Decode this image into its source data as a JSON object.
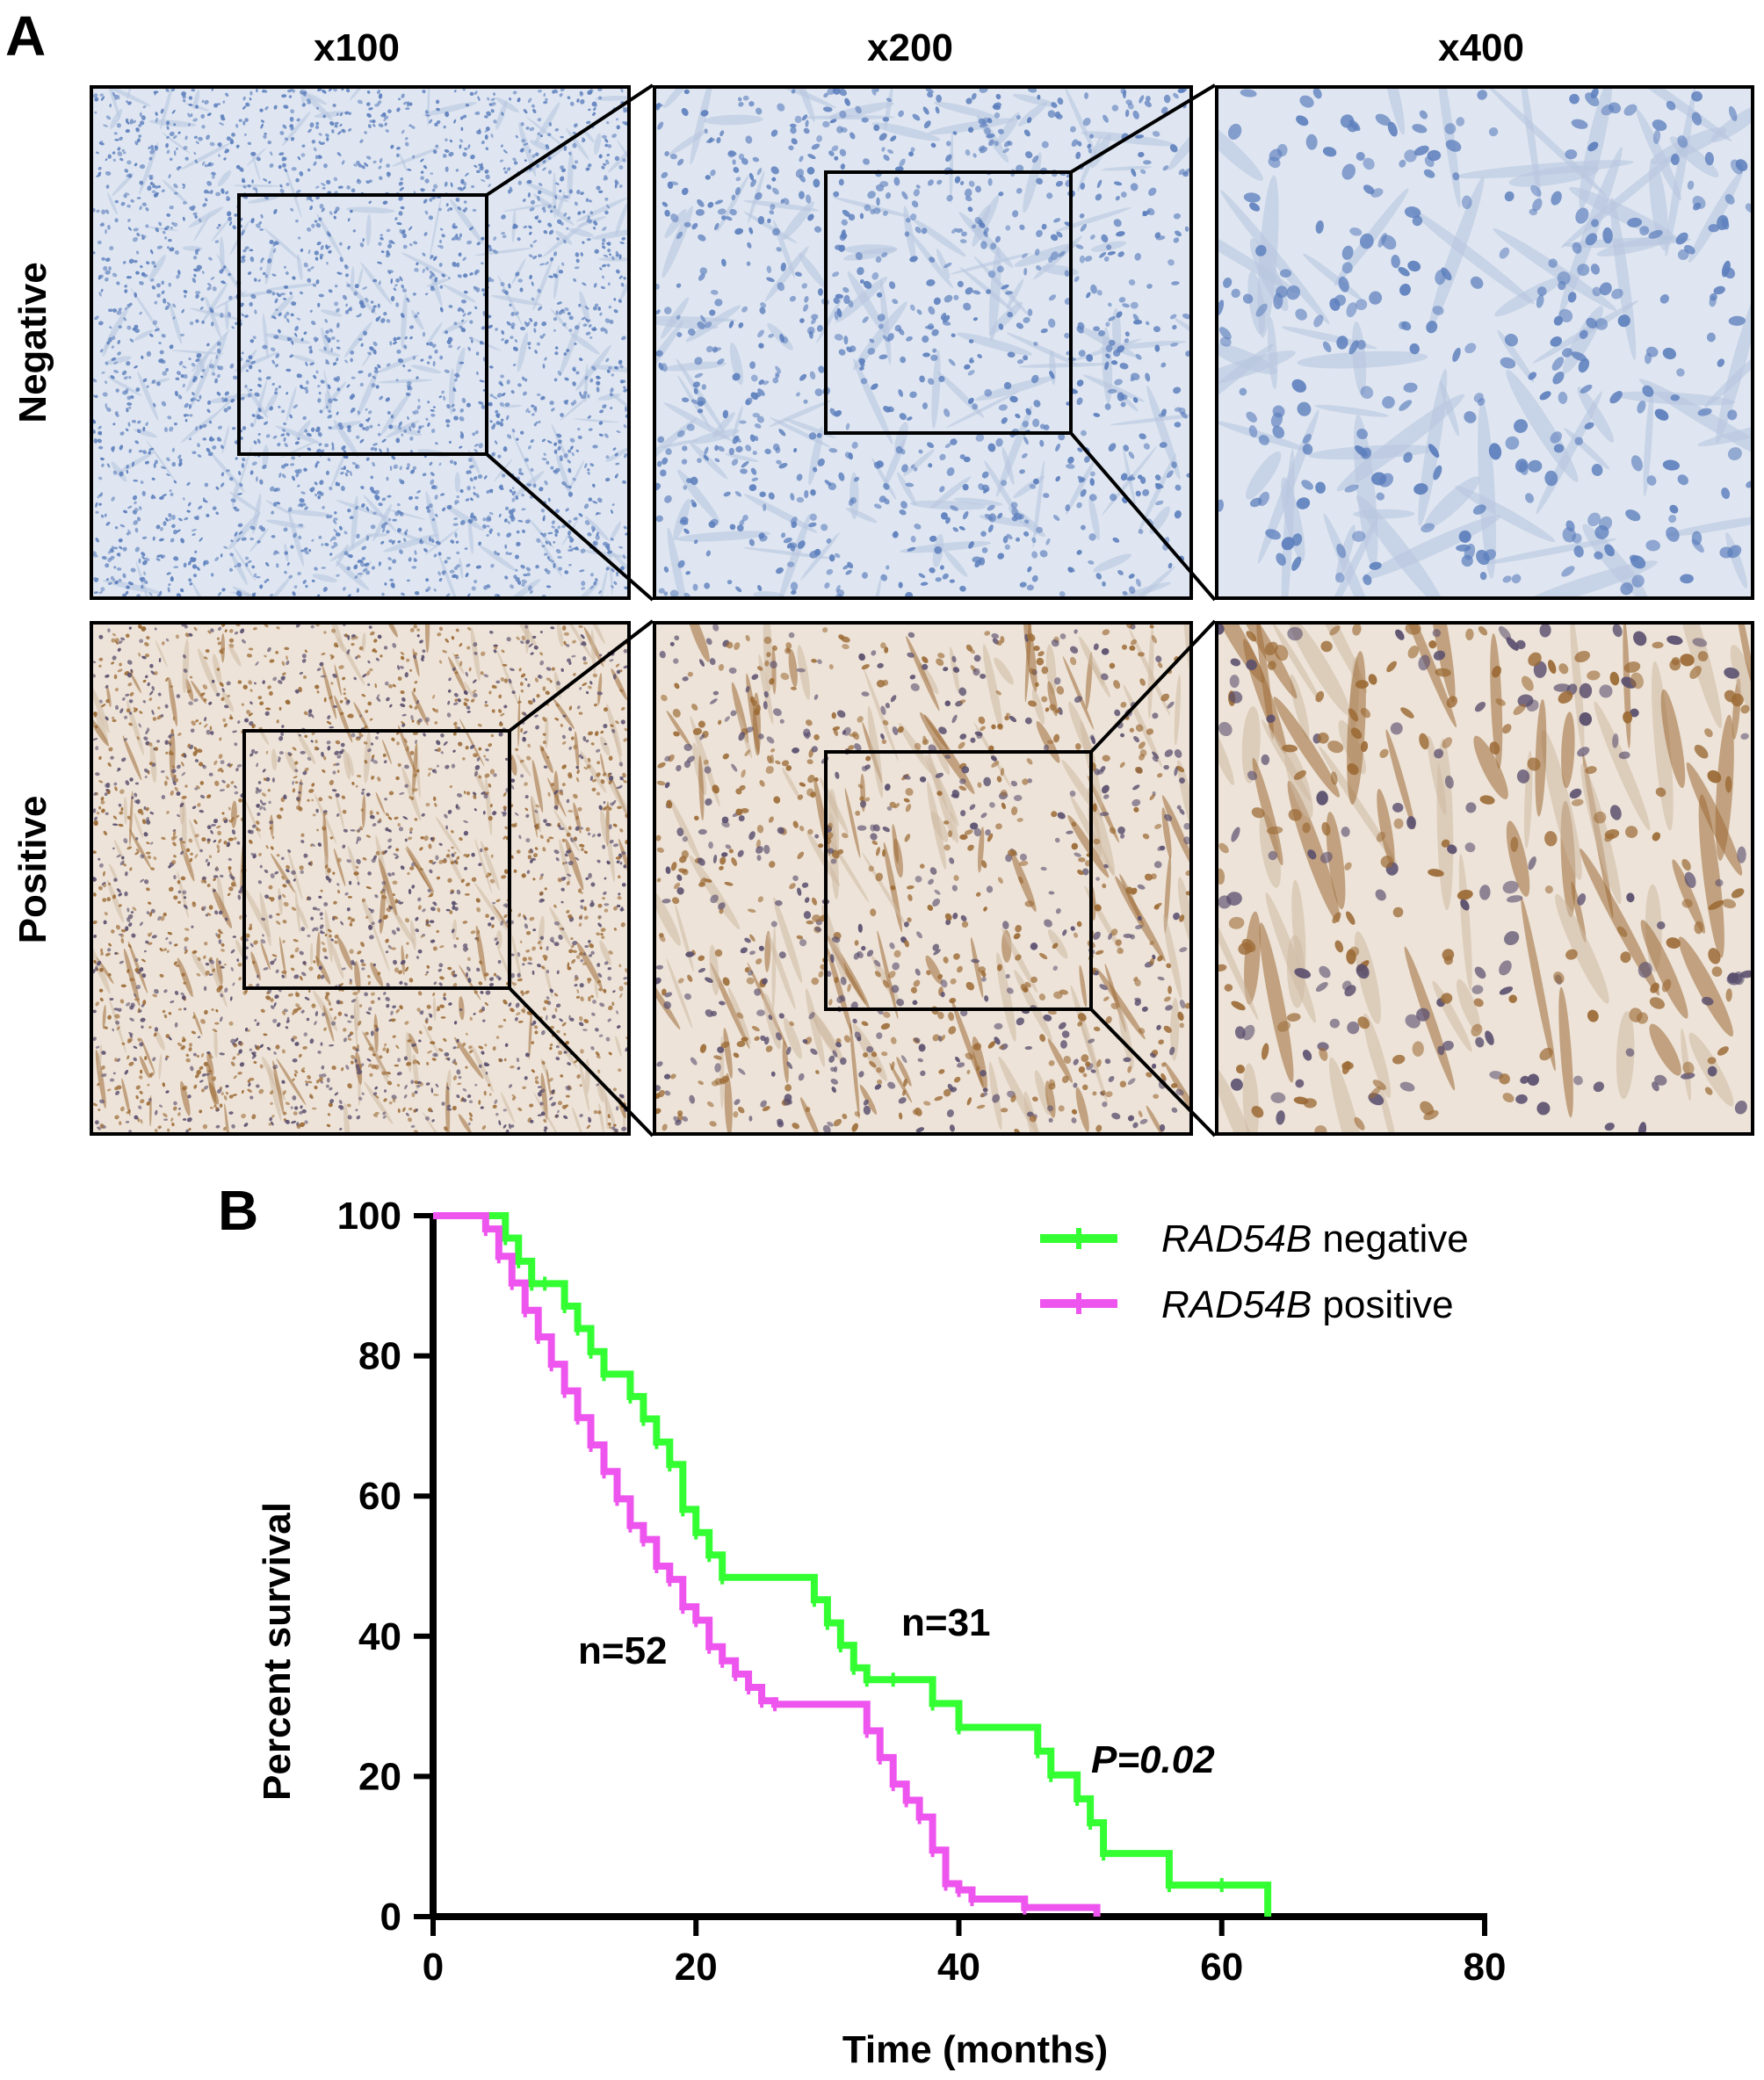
{
  "panel_a": {
    "letter": "A",
    "magnifications": [
      "x100",
      "x200",
      "x400"
    ],
    "rows": [
      "Negative",
      "Positive"
    ],
    "stain_colors": {
      "negative_background": "#dfe6f1",
      "negative_nuclei": "#5d7fbd",
      "positive_background": "#ede3d8",
      "positive_cells": "#9c6b36",
      "positive_nuclei": "#5a4f6e"
    }
  },
  "panel_b": {
    "letter": "B",
    "legend": {
      "negative_italic": "RAD54B",
      "negative_rest": " negative",
      "positive_italic": "RAD54B",
      "positive_rest": " positive"
    },
    "annotations": {
      "n_negative": "n=31",
      "n_positive": "n=52",
      "p_value": "P=0.02"
    }
  },
  "chart_data": {
    "type": "line",
    "subtype": "kaplan-meier",
    "xlabel": "Time (months)",
    "ylabel": "Percent survival",
    "xlim": [
      0,
      80
    ],
    "ylim": [
      0,
      100
    ],
    "xticks": [
      0,
      20,
      40,
      60,
      80
    ],
    "yticks": [
      0,
      20,
      40,
      60,
      80,
      100
    ],
    "legend_position": "top-right",
    "series": [
      {
        "name": "RAD54B negative",
        "color": "#33ff33",
        "x": [
          0,
          5.5,
          6.5,
          7.5,
          8.5,
          10,
          11,
          12,
          13,
          15,
          16,
          17,
          18,
          19,
          20,
          21,
          22,
          29,
          30,
          31,
          32,
          33,
          35,
          38,
          40,
          46,
          47,
          49,
          50,
          51,
          56,
          60,
          63.5
        ],
        "y": [
          100,
          96.8,
          93.5,
          90.3,
          90.3,
          87.1,
          83.9,
          80.6,
          77.4,
          74.2,
          71,
          67.7,
          64.5,
          58.1,
          54.8,
          51.6,
          48.4,
          45.2,
          41.9,
          38.7,
          35.5,
          33.8,
          33.8,
          30.4,
          27,
          23.6,
          20.2,
          16.8,
          13.4,
          9,
          4.5,
          4.5,
          0
        ]
      },
      {
        "name": "RAD54B positive",
        "color": "#ee55ee",
        "x": [
          0,
          4,
          5,
          6,
          7,
          8,
          9,
          10,
          11,
          12,
          13,
          14,
          15,
          16,
          17,
          18,
          19,
          20,
          21,
          22,
          23,
          24,
          25,
          26,
          33,
          34,
          35,
          36,
          37,
          38,
          39,
          40,
          41,
          45,
          50.5
        ],
        "y": [
          100,
          98.1,
          94.2,
          90.4,
          86.5,
          82.7,
          78.8,
          75,
          71.2,
          67.3,
          63.5,
          59.6,
          55.8,
          53.8,
          50,
          48.1,
          44.2,
          42.3,
          38.5,
          36.5,
          34.6,
          32.7,
          30.8,
          30.3,
          26.5,
          22.7,
          18.9,
          16.6,
          14.2,
          9.5,
          4.7,
          3.8,
          2.5,
          1.3,
          0
        ]
      }
    ]
  }
}
